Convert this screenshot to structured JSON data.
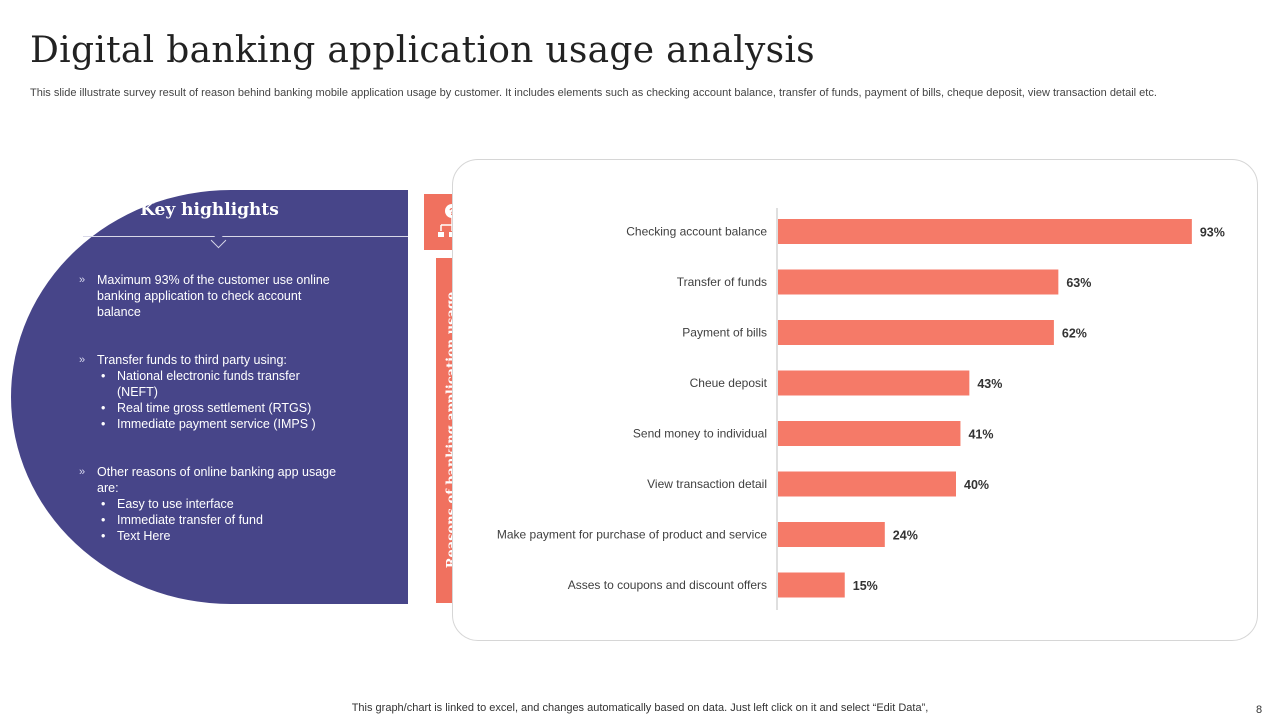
{
  "slide": {
    "title": "Digital banking application usage analysis",
    "subtitle": "This slide illustrate survey result of reason behind banking mobile application usage by customer. It includes elements such as checking account balance, transfer of funds, payment of bills, cheque deposit, view transaction detail etc.",
    "footnote": "This graph/chart is linked to excel,  and changes automatically based on data. Just left click on it and select “Edit Data”,",
    "page_number": "8"
  },
  "highlights": {
    "heading": "Key highlights",
    "marker": "»",
    "points": [
      {
        "text": "Maximum 93% of the customer use online banking application to check account balance",
        "subpoints": []
      },
      {
        "text": "Transfer funds to third party using:",
        "subpoints": [
          "National electronic funds transfer (NEFT)",
          "Real time gross settlement (RTGS)",
          "Immediate payment service (IMPS )"
        ]
      },
      {
        "text": "Other reasons of online banking app usage are:",
        "subpoints": [
          "Easy to use interface",
          "Immediate transfer of fund",
          "Text Here"
        ]
      }
    ]
  },
  "side_label": {
    "text": "Reasons of banking application usage",
    "icon": "hierarchy-question-icon"
  },
  "colors": {
    "panel": "#474589",
    "accent": "#f0715f",
    "bar": "#f57a68"
  },
  "chart_data": {
    "type": "bar",
    "orientation": "horizontal",
    "title": "",
    "ylabel": "Reasons of banking application usage",
    "xlabel": "",
    "xlim": [
      0,
      100
    ],
    "value_suffix": "%",
    "grid": false,
    "categories": [
      "Checking account balance",
      "Transfer of funds",
      "Payment of bills",
      "Cheue deposit",
      "Send money to individual",
      "View transaction detail",
      "Make payment for purchase of product and service",
      "Asses to coupons and discount offers"
    ],
    "values": [
      93,
      63,
      62,
      43,
      41,
      40,
      24,
      15
    ]
  }
}
